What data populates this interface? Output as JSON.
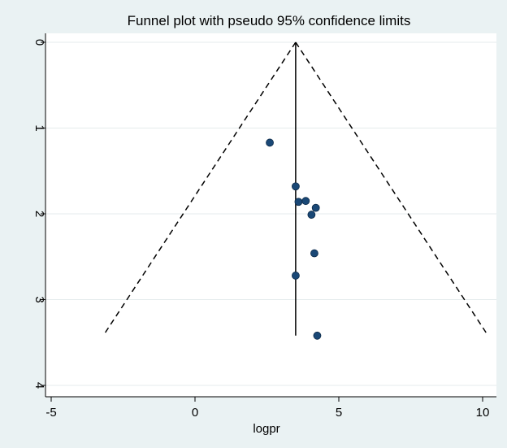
{
  "chart_data": {
    "type": "scatter",
    "title": "Funnel plot with pseudo 95% confidence limits",
    "xlabel": "logpr",
    "ylabel": "",
    "xlim": [
      -5,
      10
    ],
    "ylim": [
      0,
      4
    ],
    "y_reversed": true,
    "y_axis_side": "left",
    "y_tick_rotation": "vertical",
    "grid": "horizontal",
    "legend": "none",
    "x_ticks": [
      -5,
      0,
      5,
      10
    ],
    "x_tick_labels": [
      "-5",
      "0",
      "5",
      "10"
    ],
    "y_ticks": [
      0,
      1,
      2,
      3,
      4
    ],
    "y_tick_labels": [
      "0",
      "1",
      "2",
      "3",
      "4"
    ],
    "points": [
      {
        "x": 2.6,
        "y": 1.17
      },
      {
        "x": 3.5,
        "y": 1.68
      },
      {
        "x": 3.6,
        "y": 1.86
      },
      {
        "x": 3.85,
        "y": 1.85
      },
      {
        "x": 4.05,
        "y": 2.01
      },
      {
        "x": 4.2,
        "y": 1.93
      },
      {
        "x": 4.15,
        "y": 2.46
      },
      {
        "x": 3.5,
        "y": 2.72
      },
      {
        "x": 4.25,
        "y": 3.42
      }
    ],
    "pooled_estimate": 3.5,
    "funnel": {
      "apex": [
        3.5,
        0
      ],
      "lower_left": [
        -3.15,
        3.4
      ],
      "lower_right": [
        10.15,
        3.4
      ],
      "vertical_line_bottom": 3.42
    },
    "colors": {
      "background": "#eaf2f3",
      "plot_area": "#ffffff",
      "grid": "#e4ebec",
      "marker_fill": "#1a4876",
      "marker_edge": "#0d2a48",
      "lines": "#000000"
    }
  }
}
